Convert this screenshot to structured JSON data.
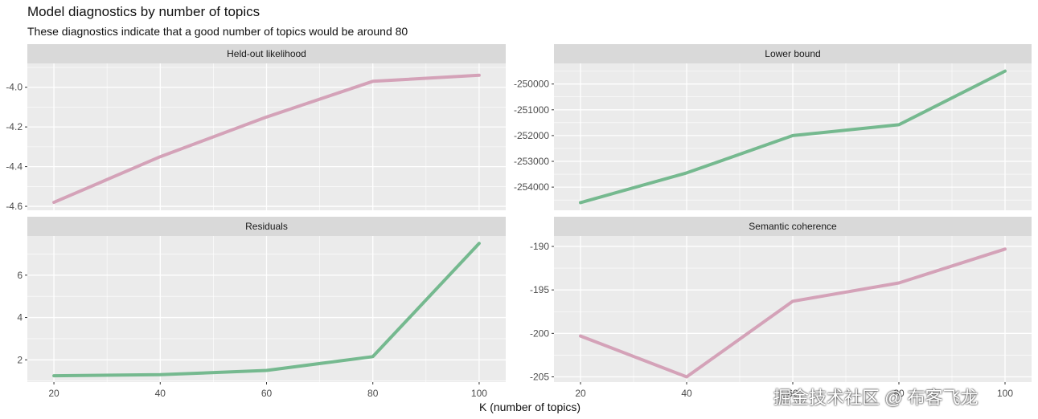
{
  "title": "Model diagnostics by number of topics",
  "subtitle": "These diagnostics indicate that a good number of topics would be around 80",
  "watermark": "掘金技术社区 @ 布客飞龙",
  "chart_data": [
    {
      "type": "line",
      "facet_title": "Held-out likelihood",
      "x": [
        20,
        40,
        60,
        80,
        100
      ],
      "values": [
        -4.58,
        -4.35,
        -4.15,
        -3.97,
        -3.94
      ],
      "xlim": [
        15,
        105
      ],
      "ylim": [
        -4.62,
        -3.88
      ],
      "yticks": [
        -4.6,
        -4.4,
        -4.2,
        -4.0
      ],
      "ytick_labels": [
        "-4.6",
        "-4.4",
        "-4.2",
        "-4.0"
      ],
      "color": "#d4a2b8",
      "show_xticks": false
    },
    {
      "type": "line",
      "facet_title": "Lower bound",
      "x": [
        20,
        40,
        60,
        80,
        100
      ],
      "values": [
        -254600,
        -253450,
        -252000,
        -251580,
        -249500
      ],
      "xlim": [
        15,
        105
      ],
      "ylim": [
        -254900,
        -249200
      ],
      "yticks": [
        -254000,
        -253000,
        -252000,
        -251000,
        -250000
      ],
      "ytick_labels": [
        "-254000",
        "-253000",
        "-252000",
        "-251000",
        "-250000"
      ],
      "color": "#75b98f",
      "show_xticks": false
    },
    {
      "type": "line",
      "facet_title": "Residuals",
      "x": [
        20,
        40,
        60,
        80,
        100
      ],
      "values": [
        1.25,
        1.3,
        1.5,
        2.15,
        7.5
      ],
      "xlim": [
        15,
        105
      ],
      "ylim": [
        0.95,
        7.85
      ],
      "yticks": [
        2,
        4,
        6
      ],
      "ytick_labels": [
        "2",
        "4",
        "6"
      ],
      "color": "#75b98f",
      "show_xticks": true
    },
    {
      "type": "line",
      "facet_title": "Semantic coherence",
      "x": [
        20,
        40,
        60,
        80,
        100
      ],
      "values": [
        -200.3,
        -205.0,
        -196.3,
        -194.2,
        -190.3
      ],
      "xlim": [
        15,
        105
      ],
      "ylim": [
        -205.6,
        -188.8
      ],
      "yticks": [
        -205,
        -200,
        -195,
        -190
      ],
      "ytick_labels": [
        "-205",
        "-200",
        "-195",
        "-190"
      ],
      "color": "#d4a2b8",
      "show_xticks": true
    }
  ],
  "x_axis": {
    "ticks": [
      20,
      40,
      60,
      80,
      100
    ],
    "tick_labels": [
      "20",
      "40",
      "60",
      "80",
      "100"
    ],
    "label": "K (number of topics)"
  },
  "colors": {
    "panel_bg": "#ebebeb",
    "strip_bg": "#d9d9d9",
    "grid": "#ffffff"
  }
}
